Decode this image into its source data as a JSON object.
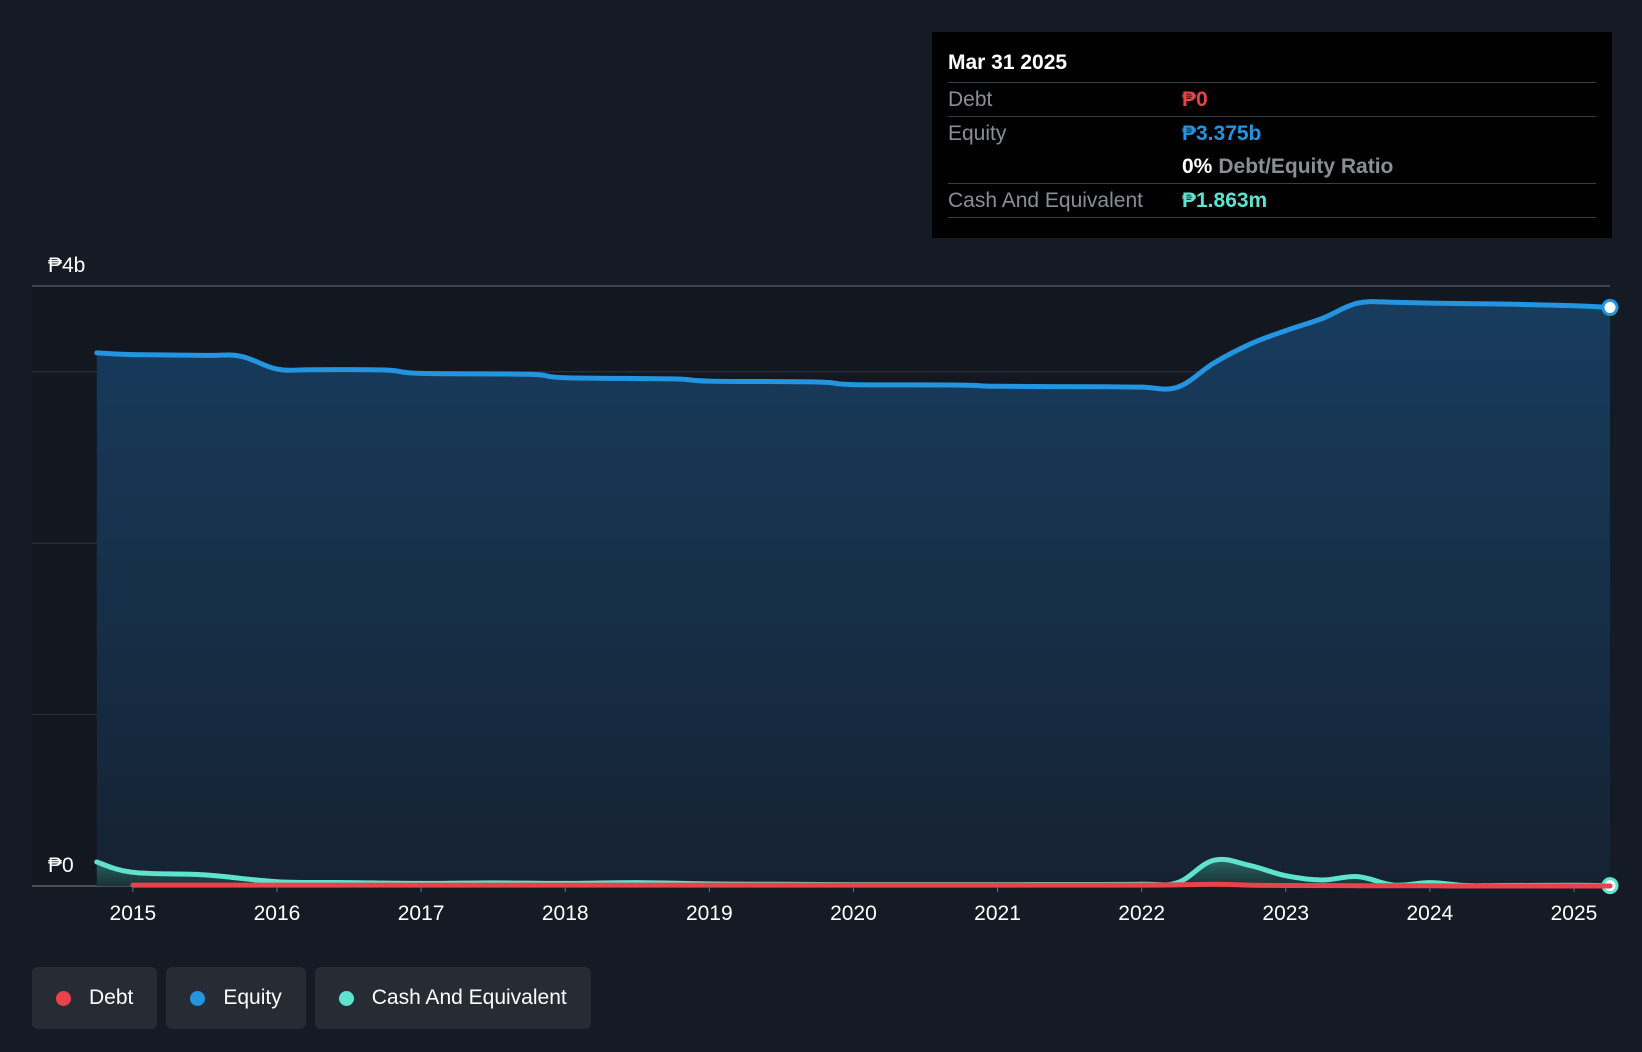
{
  "tooltip": {
    "date": "Mar 31 2025",
    "debt_label": "Debt",
    "debt_value": "₱0",
    "equity_label": "Equity",
    "equity_value": "₱3.375b",
    "ratio_value": "0%",
    "ratio_label": "Debt/Equity Ratio",
    "cash_label": "Cash And Equivalent",
    "cash_value": "₱1.863m"
  },
  "legend": {
    "debt": "Debt",
    "equity": "Equity",
    "cash": "Cash And Equivalent"
  },
  "colors": {
    "debt": "#e8424a",
    "equity": "#2394df",
    "cash": "#5ee3cf",
    "background": "#151b24",
    "tooltip_bg": "#000000"
  },
  "chart_data": {
    "type": "line",
    "title": "",
    "xlabel": "",
    "ylabel": "",
    "ylim": [
      0,
      3.5
    ],
    "xlim": [
      2014.3,
      2025.25
    ],
    "y_tick_labels": [
      {
        "value": 3.5,
        "label": "₱4b"
      },
      {
        "value": 0,
        "label": "₱0"
      }
    ],
    "gridlines_y": [
      0,
      1,
      2,
      3,
      3.5
    ],
    "x_ticks": [
      2015,
      2016,
      2017,
      2018,
      2019,
      2020,
      2021,
      2022,
      2023,
      2024,
      2025
    ],
    "x_tick_labels": [
      "2015",
      "2016",
      "2017",
      "2018",
      "2019",
      "2020",
      "2021",
      "2022",
      "2023",
      "2024",
      "2025"
    ],
    "legend_position": "bottom-left",
    "series": [
      {
        "name": "Equity",
        "color": "#2394df",
        "fill": true,
        "x": [
          2014.75,
          2015.0,
          2015.5,
          2015.75,
          2016.0,
          2016.25,
          2016.75,
          2017.0,
          2017.75,
          2018.0,
          2018.75,
          2019.0,
          2019.75,
          2020.0,
          2020.75,
          2021.0,
          2021.75,
          2022.0,
          2022.25,
          2022.5,
          2022.75,
          2023.0,
          2023.25,
          2023.5,
          2023.75,
          2024.0,
          2024.5,
          2024.75,
          2025.0,
          2025.25
        ],
        "values": [
          3.11,
          3.1,
          3.095,
          3.09,
          3.015,
          3.012,
          3.01,
          2.99,
          2.985,
          2.965,
          2.958,
          2.945,
          2.94,
          2.925,
          2.922,
          2.915,
          2.912,
          2.91,
          2.91,
          3.05,
          3.16,
          3.24,
          3.31,
          3.4,
          3.405,
          3.4,
          3.395,
          3.39,
          3.385,
          3.375
        ]
      },
      {
        "name": "Cash And Equivalent",
        "color": "#5ee3cf",
        "fill": true,
        "x": [
          2014.75,
          2015.0,
          2015.5,
          2016.0,
          2016.5,
          2017.0,
          2017.5,
          2018.0,
          2018.5,
          2019.0,
          2019.5,
          2020.0,
          2020.5,
          2021.0,
          2021.5,
          2022.0,
          2022.25,
          2022.5,
          2022.75,
          2023.0,
          2023.25,
          2023.5,
          2023.75,
          2024.0,
          2024.25,
          2024.5,
          2025.0,
          2025.25
        ],
        "values": [
          0.14,
          0.08,
          0.065,
          0.025,
          0.02,
          0.015,
          0.018,
          0.015,
          0.02,
          0.012,
          0.01,
          0.008,
          0.008,
          0.008,
          0.009,
          0.01,
          0.02,
          0.15,
          0.12,
          0.06,
          0.035,
          0.055,
          0.005,
          0.02,
          0.003,
          0.003,
          0.004,
          0.002
        ]
      },
      {
        "name": "Debt",
        "color": "#e8424a",
        "fill": false,
        "x": [
          2015.0,
          2016.0,
          2017.0,
          2018.0,
          2019.0,
          2020.0,
          2021.0,
          2022.0,
          2022.5,
          2022.75,
          2023.0,
          2023.5,
          2024.0,
          2024.25,
          2025.25
        ],
        "values": [
          0.005,
          0.005,
          0.005,
          0.005,
          0.005,
          0.005,
          0.005,
          0.005,
          0.01,
          0.005,
          0.003,
          0.002,
          0.001,
          0,
          0
        ]
      }
    ]
  }
}
